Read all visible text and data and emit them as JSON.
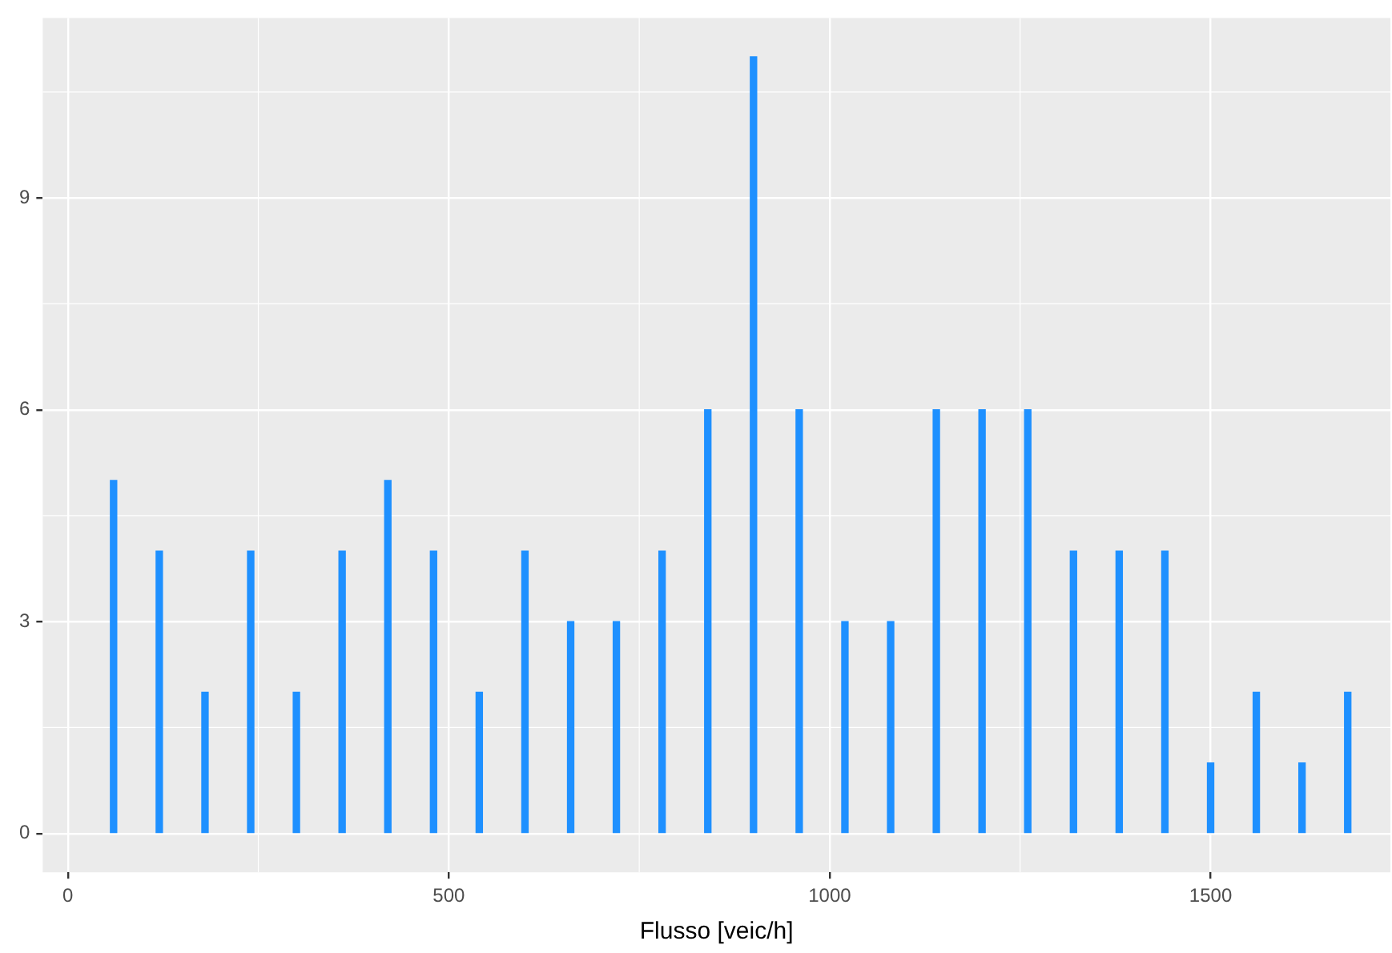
{
  "chart_data": {
    "type": "bar",
    "xlabel": "Flusso [veic/h]",
    "x": [
      60,
      120,
      180,
      240,
      300,
      360,
      420,
      480,
      540,
      600,
      660,
      720,
      780,
      840,
      900,
      960,
      1020,
      1080,
      1140,
      1200,
      1260,
      1320,
      1380,
      1440,
      1500,
      1560,
      1620,
      1680
    ],
    "values": [
      5,
      4,
      2,
      4,
      2,
      4,
      5,
      4,
      2,
      4,
      3,
      3,
      4,
      6,
      11,
      6,
      3,
      3,
      6,
      6,
      6,
      4,
      4,
      4,
      1,
      2,
      1,
      2
    ],
    "color": "#1e90ff",
    "xlim": [
      -33,
      1736
    ],
    "xticks": [
      0,
      500,
      1000,
      1500
    ],
    "ylim": [
      -0.55,
      11.55
    ],
    "yticks": [
      0,
      3,
      6,
      9
    ],
    "grid": true,
    "legend": false
  }
}
